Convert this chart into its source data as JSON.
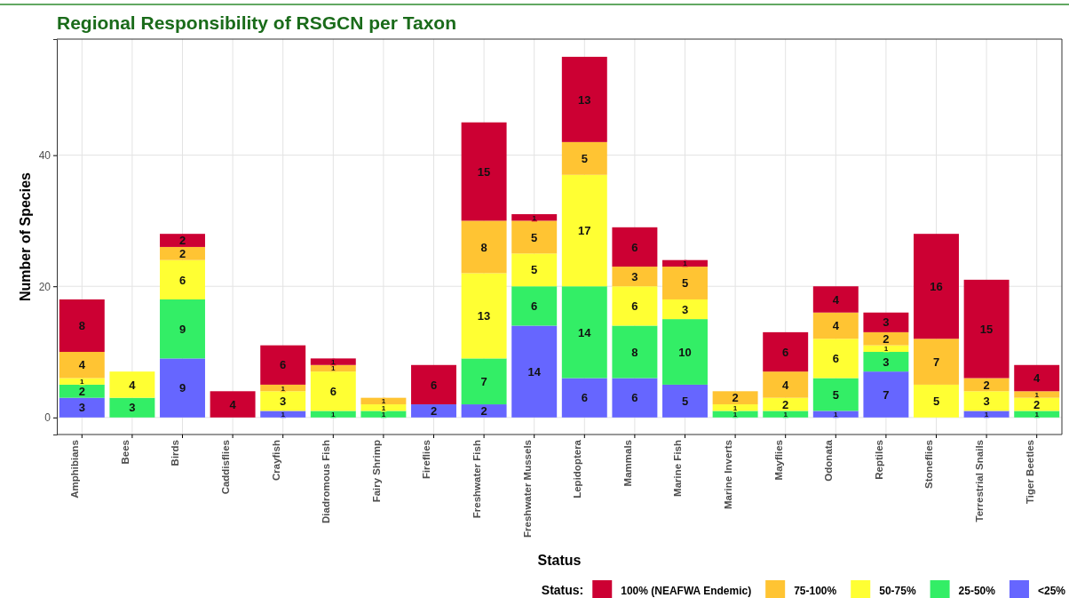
{
  "chart_data": {
    "type": "bar",
    "stacked": true,
    "title": "Regional Responsibility of RSGCN per Taxon",
    "xlabel": "Status",
    "ylabel": "Number of Species",
    "legend_title": "Status:",
    "legend": "bottom right",
    "grid": true,
    "data_labels": true,
    "categories": [
      "Amphibians",
      "Bees",
      "Birds",
      "Caddisflies",
      "Crayfish",
      "Diadromous Fish",
      "Fairy Shrimp",
      "Fireflies",
      "Freshwater Fish",
      "Freshwater Mussels",
      "Lepidoptera",
      "Mammals",
      "Marine Fish",
      "Marine Inverts",
      "Mayflies",
      "Odonata",
      "Reptiles",
      "Stoneflies",
      "Terrestrial Snails",
      "Tiger Beetles"
    ],
    "ylim": [
      -2.6,
      57.7
    ],
    "yticks": [
      0,
      20,
      40
    ],
    "series": [
      {
        "name": "<25%",
        "color": "#6666ff",
        "values": [
          3,
          null,
          9,
          null,
          1,
          null,
          null,
          2,
          2,
          14,
          6,
          6,
          5,
          null,
          null,
          1,
          7,
          null,
          1,
          null
        ]
      },
      {
        "name": "25-50%",
        "color": "#33ee66",
        "values": [
          2,
          3,
          9,
          null,
          null,
          1,
          1,
          null,
          7,
          6,
          14,
          8,
          10,
          1,
          1,
          5,
          3,
          null,
          null,
          1
        ]
      },
      {
        "name": "50-75%",
        "color": "#ffff33",
        "values": [
          1,
          4,
          6,
          null,
          3,
          6,
          1,
          null,
          13,
          5,
          17,
          6,
          3,
          1,
          2,
          6,
          1,
          5,
          3,
          2
        ]
      },
      {
        "name": "75-100%",
        "color": "#ffc433",
        "values": [
          4,
          null,
          2,
          null,
          1,
          1,
          1,
          null,
          8,
          5,
          5,
          3,
          5,
          2,
          4,
          4,
          2,
          7,
          2,
          1
        ]
      },
      {
        "name": "100% (NEAFWA Endemic)",
        "color": "#cc0033",
        "values": [
          8,
          null,
          2,
          4,
          6,
          1,
          null,
          6,
          15,
          1,
          13,
          6,
          1,
          null,
          6,
          4,
          3,
          16,
          15,
          4
        ]
      }
    ]
  }
}
